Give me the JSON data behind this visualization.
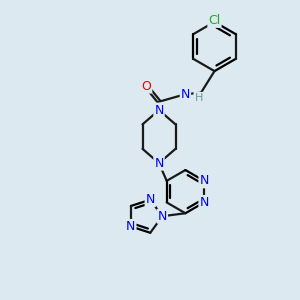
{
  "background_color": "#dce9f0",
  "bond_color": "#1a1a1a",
  "atom_colors": {
    "N": "#0000ee",
    "O": "#ee0000",
    "Cl": "#22aa22",
    "H": "#6a9a9a"
  },
  "figsize": [
    3.0,
    3.0
  ],
  "dpi": 100
}
